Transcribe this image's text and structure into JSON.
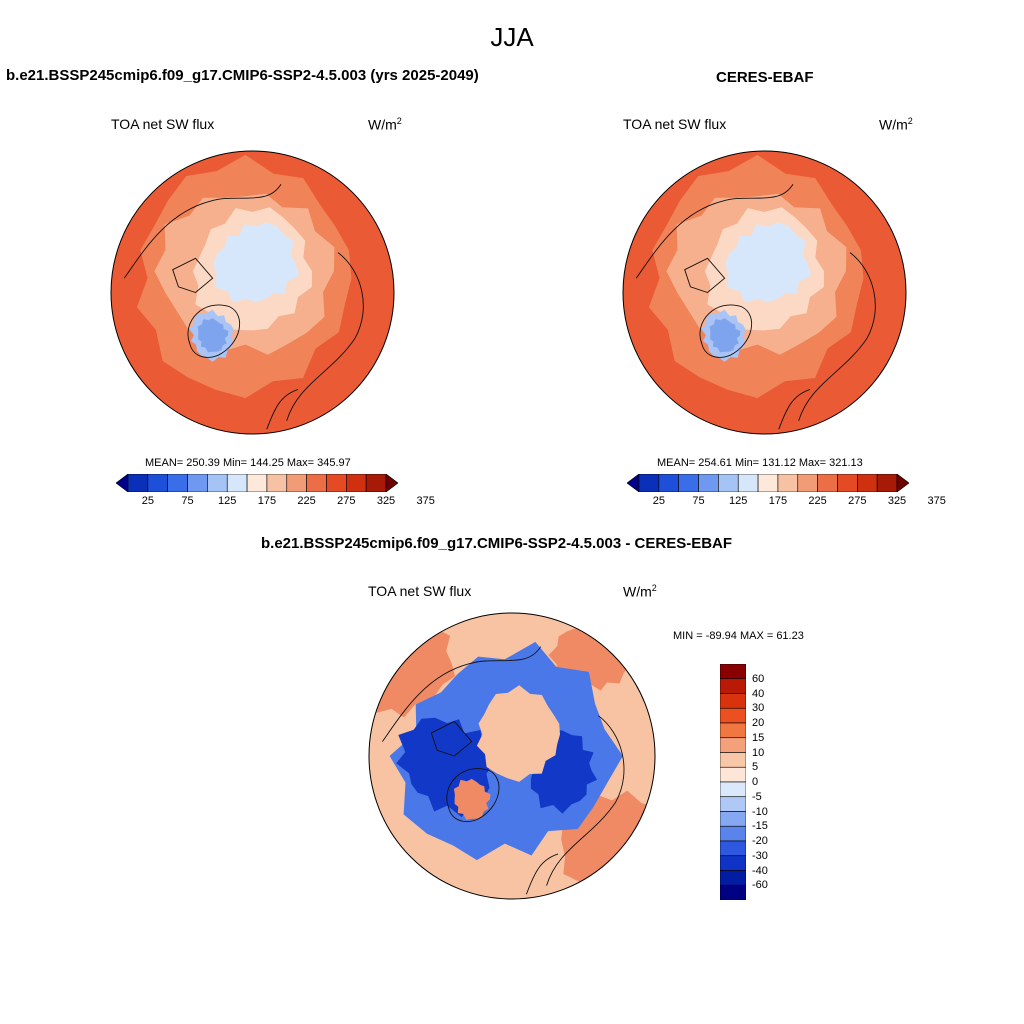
{
  "page_title": "JJA",
  "panels": [
    {
      "title": "b.e21.BSSP245cmip6.f09_g17.CMIP6-SSP2-4.5.003 (yrs 2025-2049)",
      "left_label": "TOA net SW flux",
      "units": "W/m",
      "units_sup": "2",
      "stats": "MEAN= 250.39  Min= 144.25  Max= 345.97"
    },
    {
      "title": "CERES-EBAF",
      "left_label": "TOA net SW flux",
      "units": "W/m",
      "units_sup": "2",
      "stats": "MEAN= 254.61  Min= 131.12  Max= 321.13"
    },
    {
      "title": "b.e21.BSSP245cmip6.f09_g17.CMIP6-SSP2-4.5.003 - CERES-EBAF",
      "left_label": "TOA net SW flux",
      "units": "W/m",
      "units_sup": "2",
      "stats": "MIN = -89.94 MAX =  61.23"
    }
  ],
  "colorbar_abs": {
    "labels": [
      "25",
      "75",
      "125",
      "175",
      "225",
      "275",
      "325",
      "375"
    ],
    "colors": [
      "#00008a",
      "#0a2fb8",
      "#1e4fd8",
      "#3a6ee8",
      "#6f98f0",
      "#a6c3f5",
      "#d6e6fb",
      "#fde8da",
      "#f7c2a4",
      "#f29b77",
      "#ec6e47",
      "#e44a24",
      "#cf3010",
      "#a81a08",
      "#6e0000"
    ]
  },
  "colorbar_diff": {
    "labels": [
      "60",
      "40",
      "30",
      "20",
      "15",
      "10",
      "5",
      "0",
      "-5",
      "-10",
      "-15",
      "-20",
      "-30",
      "-40",
      "-60"
    ],
    "colors": [
      "#8a0000",
      "#b81a05",
      "#d8330d",
      "#ed5020",
      "#f07840",
      "#f4a07a",
      "#f8c7a8",
      "#fde6d8",
      "#dbe8fb",
      "#b0c8f6",
      "#86a7f1",
      "#5a84ec",
      "#2e58e0",
      "#0e33c6",
      "#021ca4",
      "#000083"
    ]
  },
  "map_colors": {
    "high": "#ea5a34",
    "high2": "#f08358",
    "mid": "#f6b08e",
    "low": "#fbd9c4",
    "ice": "#d7e7fb",
    "greenland": "#7fa4ee",
    "greenland_edge": "#a9c4f5",
    "diff_neg_strong": "#1238c8",
    "diff_neg": "#4a78e8",
    "diff_pos": "#f8c3a3",
    "diff_pos2": "#f08a64"
  }
}
